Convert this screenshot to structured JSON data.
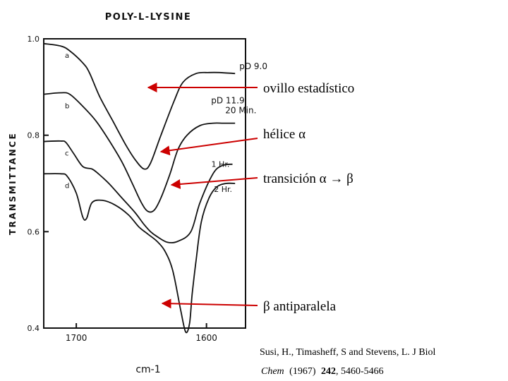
{
  "chart_data": {
    "type": "line",
    "title": "POLY-L-LYSINE",
    "xlabel": "cm-1",
    "ylabel": "TRANSMITTANCE",
    "x_reversed": true,
    "xlim": [
      1725,
      1570
    ],
    "ylim": [
      0.4,
      1.0
    ],
    "x_ticks": [
      1700,
      1600
    ],
    "y_ticks": [
      {
        "value": 1.0,
        "label": "1.0"
      },
      {
        "value": 0.8,
        "label": "0.8"
      },
      {
        "value": 0.6,
        "label": "0.6"
      },
      {
        "value": 0.4,
        "label": "0.4"
      }
    ],
    "series": [
      {
        "name": "a",
        "label": "pD 9.0",
        "x": [
          1725,
          1712,
          1705,
          1695,
          1690,
          1682,
          1672,
          1662,
          1655,
          1648,
          1643,
          1635,
          1625,
          1618,
          1608,
          1598,
          1590,
          1578
        ],
        "y": [
          0.99,
          0.985,
          0.975,
          0.95,
          0.93,
          0.88,
          0.83,
          0.78,
          0.75,
          0.73,
          0.742,
          0.8,
          0.87,
          0.91,
          0.928,
          0.93,
          0.93,
          0.928
        ]
      },
      {
        "name": "b",
        "label": "pD 11.9 20 Min.",
        "x": [
          1725,
          1712,
          1705,
          1695,
          1685,
          1675,
          1665,
          1657,
          1650,
          1645,
          1640,
          1635,
          1628,
          1622,
          1615,
          1605,
          1595,
          1587,
          1578
        ],
        "y": [
          0.885,
          0.888,
          0.885,
          0.86,
          0.83,
          0.79,
          0.745,
          0.7,
          0.66,
          0.642,
          0.645,
          0.67,
          0.72,
          0.77,
          0.8,
          0.82,
          0.825,
          0.825,
          0.825
        ]
      },
      {
        "name": "c",
        "label": "1 Hr.",
        "x": [
          1725,
          1712,
          1708,
          1702,
          1695,
          1688,
          1683,
          1675,
          1665,
          1655,
          1648,
          1643,
          1638,
          1630,
          1622,
          1612,
          1605,
          1595,
          1588,
          1580
        ],
        "y": [
          0.787,
          0.788,
          0.785,
          0.762,
          0.735,
          0.73,
          0.72,
          0.7,
          0.67,
          0.64,
          0.615,
          0.6,
          0.59,
          0.578,
          0.58,
          0.6,
          0.66,
          0.72,
          0.737,
          0.74
        ]
      },
      {
        "name": "d",
        "label": "2 Hr.",
        "x": [
          1725,
          1712,
          1707,
          1700,
          1695,
          1692,
          1688,
          1680,
          1670,
          1660,
          1652,
          1645,
          1638,
          1632,
          1626,
          1620,
          1616,
          1613,
          1611,
          1608,
          1604,
          1598,
          1592,
          1585,
          1578
        ],
        "y": [
          0.72,
          0.72,
          0.715,
          0.68,
          0.63,
          0.628,
          0.66,
          0.665,
          0.655,
          0.635,
          0.61,
          0.595,
          0.58,
          0.56,
          0.52,
          0.44,
          0.392,
          0.41,
          0.47,
          0.54,
          0.62,
          0.67,
          0.693,
          0.7,
          0.7
        ]
      }
    ],
    "annotations": [
      {
        "text": "ovillo estadístico",
        "points_to": "a"
      },
      {
        "text": "hélice α",
        "points_to": "b"
      },
      {
        "text": "transición α → β",
        "points_to": "c"
      },
      {
        "text": "β antiparalela",
        "points_to": "d"
      }
    ],
    "arrow_color": "#cc0000",
    "grid": false
  },
  "citation": {
    "line1": "Susi, H., Timasheff, S and Stevens, L. J Biol",
    "line2_journal": "Chem",
    "line2_year": "(1967)",
    "line2_volume": "242",
    "line2_pages": ", 5460-5466"
  }
}
